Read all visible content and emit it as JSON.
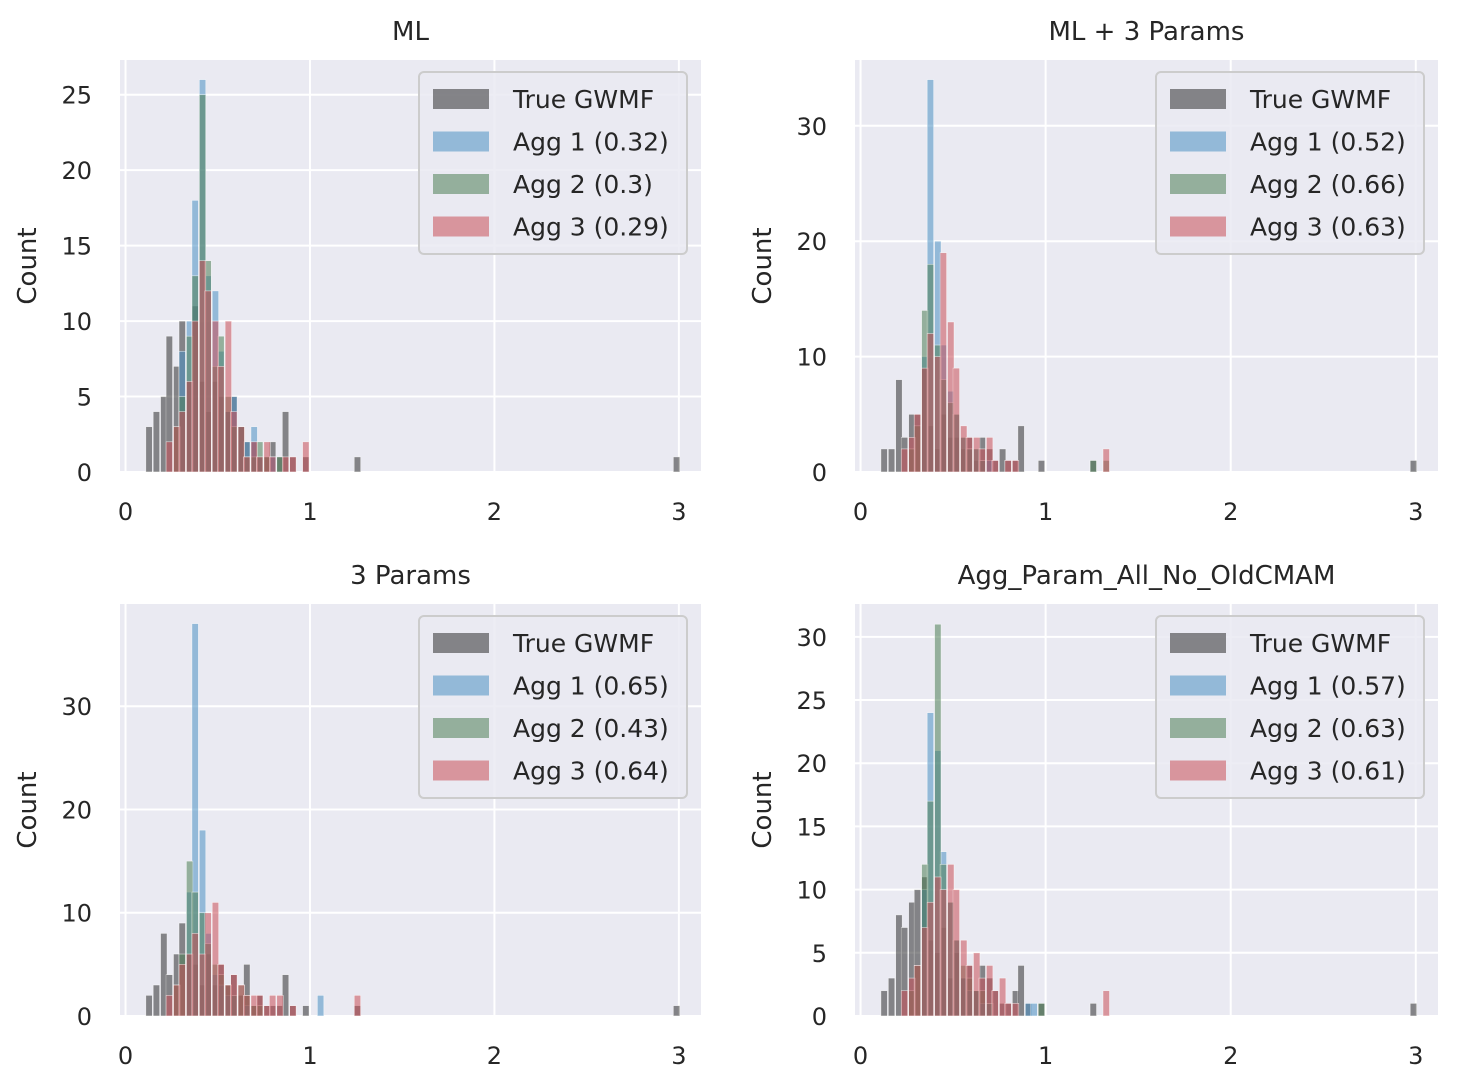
{
  "figure": {
    "background": "#ffffff"
  },
  "style": {
    "axes_bg": "#eaeaf2",
    "grid": "#ffffff",
    "text": "#262626",
    "legend_bg": "#eaeaf2",
    "legend_border": "#cccccc",
    "bar_opacity": 0.55
  },
  "colors": {
    "True GWMF": "#2d2d30",
    "Agg 1": "#4a90c2",
    "Agg 2": "#4d7d56",
    "Agg 3": "#c94f57"
  },
  "chart_data": [
    {
      "type": "bar",
      "title": "ML",
      "xlabel": "",
      "ylabel": "Count",
      "xlim": [
        -0.03,
        3.12
      ],
      "ylim": [
        0,
        27.3
      ],
      "xticks": [
        0,
        1,
        2,
        3
      ],
      "yticks": [
        0,
        5,
        10,
        15,
        20,
        25
      ],
      "legend": "upper right",
      "bin_width": 0.035,
      "series": [
        {
          "name": "True GWMF",
          "color": "#2d2d30",
          "x": [
            0.11,
            0.15,
            0.19,
            0.22,
            0.26,
            0.29,
            0.33,
            0.36,
            0.4,
            0.43,
            0.47,
            0.5,
            0.54,
            0.57,
            0.61,
            0.64,
            0.68,
            0.71,
            0.75,
            0.78,
            0.82,
            0.85,
            0.89,
            0.96,
            1.24,
            2.97
          ],
          "y": [
            3,
            4,
            5,
            9,
            7,
            10,
            6,
            11,
            6,
            4,
            6,
            5,
            4,
            5,
            3,
            2,
            2,
            1,
            1,
            2,
            1,
            4,
            1,
            1,
            1,
            1
          ]
        },
        {
          "name": "Agg 1 (0.32)",
          "color": "#4a90c2",
          "x": [
            0.29,
            0.33,
            0.36,
            0.4,
            0.43,
            0.47,
            0.5,
            0.54,
            0.57,
            0.61,
            0.64,
            0.68,
            0.71,
            0.78
          ],
          "y": [
            8,
            10,
            18,
            26,
            13,
            12,
            8,
            4,
            5,
            3,
            2,
            3,
            1,
            1
          ]
        },
        {
          "name": "Agg 2 (0.3)",
          "color": "#4d7d56",
          "x": [
            0.26,
            0.29,
            0.33,
            0.36,
            0.4,
            0.43,
            0.47,
            0.5,
            0.54,
            0.57,
            0.61,
            0.64,
            0.68,
            0.71,
            0.75,
            0.82
          ],
          "y": [
            3,
            5,
            9,
            13,
            25,
            14,
            7,
            9,
            5,
            3,
            3,
            1,
            1,
            2,
            1,
            1
          ]
        },
        {
          "name": "Agg 3 (0.29)",
          "color": "#c94f57",
          "x": [
            0.22,
            0.26,
            0.29,
            0.33,
            0.36,
            0.4,
            0.43,
            0.47,
            0.5,
            0.54,
            0.57,
            0.61,
            0.64,
            0.68,
            0.71,
            0.75,
            0.78,
            0.85,
            0.89,
            0.96
          ],
          "y": [
            2,
            3,
            4,
            6,
            10,
            14,
            12,
            10,
            7,
            10,
            4,
            3,
            1,
            2,
            1,
            2,
            1,
            1,
            1,
            2
          ]
        }
      ]
    },
    {
      "type": "bar",
      "title": "ML + 3 Params",
      "xlabel": "",
      "ylabel": "Count",
      "xlim": [
        -0.03,
        3.12
      ],
      "ylim": [
        0,
        35.7
      ],
      "xticks": [
        0,
        1,
        2,
        3
      ],
      "yticks": [
        0,
        10,
        20,
        30
      ],
      "legend": "upper right",
      "bin_width": 0.035,
      "series": [
        {
          "name": "True GWMF",
          "color": "#2d2d30",
          "x": [
            0.11,
            0.15,
            0.19,
            0.22,
            0.26,
            0.29,
            0.33,
            0.36,
            0.4,
            0.43,
            0.47,
            0.5,
            0.54,
            0.57,
            0.61,
            0.64,
            0.68,
            0.71,
            0.75,
            0.78,
            0.82,
            0.85,
            0.96,
            1.24,
            2.97
          ],
          "y": [
            2,
            2,
            8,
            3,
            5,
            5,
            9,
            4,
            2,
            5,
            3,
            3,
            2,
            3,
            1,
            3,
            2,
            1,
            2,
            1,
            1,
            4,
            1,
            1,
            1
          ]
        },
        {
          "name": "Agg 1 (0.52)",
          "color": "#4a90c2",
          "x": [
            0.33,
            0.36,
            0.4,
            0.43,
            0.47,
            0.5,
            0.54,
            0.57,
            0.61,
            0.64,
            0.68
          ],
          "y": [
            10,
            34,
            20,
            11,
            7,
            5,
            3,
            2,
            2,
            1,
            1
          ]
        },
        {
          "name": "Agg 2 (0.66)",
          "color": "#4d7d56",
          "x": [
            0.26,
            0.29,
            0.33,
            0.36,
            0.4,
            0.43,
            0.47,
            0.5,
            0.54,
            0.57,
            0.61,
            0.64,
            1.24,
            1.31
          ],
          "y": [
            2,
            4,
            14,
            18,
            11,
            8,
            6,
            5,
            3,
            2,
            2,
            1,
            1,
            1
          ]
        },
        {
          "name": "Agg 3 (0.63)",
          "color": "#c94f57",
          "x": [
            0.22,
            0.26,
            0.29,
            0.33,
            0.36,
            0.4,
            0.43,
            0.47,
            0.5,
            0.54,
            0.57,
            0.61,
            0.64,
            0.68,
            0.71,
            0.78,
            0.82,
            1.31
          ],
          "y": [
            2,
            3,
            5,
            9,
            12,
            10,
            19,
            13,
            9,
            4,
            3,
            3,
            2,
            3,
            1,
            1,
            1,
            2
          ]
        }
      ]
    },
    {
      "type": "bar",
      "title": "3 Params",
      "xlabel": "",
      "ylabel": "Count",
      "xlim": [
        -0.03,
        3.12
      ],
      "ylim": [
        0,
        39.9
      ],
      "xticks": [
        0,
        1,
        2,
        3
      ],
      "yticks": [
        0,
        10,
        20,
        30
      ],
      "legend": "upper right",
      "bin_width": 0.035,
      "series": [
        {
          "name": "True GWMF",
          "color": "#2d2d30",
          "x": [
            0.11,
            0.15,
            0.19,
            0.22,
            0.26,
            0.29,
            0.33,
            0.36,
            0.4,
            0.43,
            0.47,
            0.5,
            0.54,
            0.57,
            0.61,
            0.64,
            0.68,
            0.71,
            0.75,
            0.78,
            0.82,
            0.85,
            0.89,
            0.96,
            1.24,
            2.97
          ],
          "y": [
            2,
            3,
            8,
            4,
            6,
            9,
            6,
            5,
            3,
            6,
            3,
            5,
            3,
            4,
            2,
            5,
            1,
            2,
            1,
            1,
            1,
            4,
            1,
            1,
            1,
            1
          ]
        },
        {
          "name": "Agg 1 (0.65)",
          "color": "#4a90c2",
          "x": [
            0.33,
            0.36,
            0.4,
            0.43,
            0.47,
            0.5,
            0.54,
            0.57,
            0.64,
            1.04
          ],
          "y": [
            12,
            38,
            18,
            8,
            4,
            3,
            2,
            2,
            1,
            2
          ]
        },
        {
          "name": "Agg 2 (0.43)",
          "color": "#4d7d56",
          "x": [
            0.26,
            0.29,
            0.33,
            0.36,
            0.4,
            0.43,
            0.47,
            0.5,
            0.54,
            0.57,
            0.61,
            0.64,
            0.68,
            0.71
          ],
          "y": [
            3,
            6,
            15,
            12,
            10,
            7,
            5,
            4,
            3,
            2,
            3,
            2,
            1,
            1
          ]
        },
        {
          "name": "Agg 3 (0.64)",
          "color": "#c94f57",
          "x": [
            0.22,
            0.26,
            0.29,
            0.33,
            0.36,
            0.4,
            0.43,
            0.47,
            0.5,
            0.54,
            0.57,
            0.61,
            0.64,
            0.68,
            0.71,
            0.75,
            0.78,
            0.82,
            0.89,
            1.24
          ],
          "y": [
            2,
            3,
            5,
            6,
            8,
            6,
            10,
            11,
            5,
            3,
            4,
            3,
            2,
            2,
            2,
            1,
            2,
            2,
            1,
            2
          ]
        }
      ]
    },
    {
      "type": "bar",
      "title": "Agg_Param_All_No_OldCMAM",
      "xlabel": "",
      "ylabel": "Count",
      "xlim": [
        -0.03,
        3.12
      ],
      "ylim": [
        0,
        32.6
      ],
      "xticks": [
        0,
        1,
        2,
        3
      ],
      "yticks": [
        0,
        5,
        10,
        15,
        20,
        25,
        30
      ],
      "legend": "upper right",
      "bin_width": 0.035,
      "series": [
        {
          "name": "True GWMF",
          "color": "#2d2d30",
          "x": [
            0.11,
            0.15,
            0.19,
            0.22,
            0.26,
            0.29,
            0.33,
            0.36,
            0.4,
            0.43,
            0.47,
            0.5,
            0.54,
            0.57,
            0.61,
            0.64,
            0.68,
            0.71,
            0.75,
            0.78,
            0.82,
            0.85,
            0.89,
            0.96,
            1.24,
            2.97
          ],
          "y": [
            2,
            3,
            8,
            7,
            9,
            10,
            11,
            6,
            5,
            7,
            3,
            5,
            3,
            4,
            2,
            4,
            3,
            2,
            1,
            1,
            2,
            4,
            1,
            1,
            1,
            1
          ]
        },
        {
          "name": "Agg 1 (0.57)",
          "color": "#4a90c2",
          "x": [
            0.33,
            0.36,
            0.4,
            0.43,
            0.47,
            0.5,
            0.54,
            0.57,
            0.61,
            0.64,
            0.68,
            0.89,
            0.92
          ],
          "y": [
            10,
            24,
            21,
            13,
            9,
            6,
            3,
            2,
            2,
            1,
            1,
            1,
            1
          ]
        },
        {
          "name": "Agg 2 (0.63)",
          "color": "#4d7d56",
          "x": [
            0.26,
            0.29,
            0.33,
            0.36,
            0.4,
            0.43,
            0.47,
            0.5,
            0.54,
            0.57,
            0.61,
            0.64,
            0.68,
            0.96
          ],
          "y": [
            2,
            4,
            12,
            17,
            31,
            12,
            9,
            6,
            4,
            3,
            2,
            2,
            1,
            1
          ]
        },
        {
          "name": "Agg 3 (0.61)",
          "color": "#c94f57",
          "x": [
            0.22,
            0.26,
            0.29,
            0.33,
            0.36,
            0.4,
            0.43,
            0.47,
            0.5,
            0.54,
            0.57,
            0.61,
            0.64,
            0.68,
            0.71,
            0.75,
            0.78,
            0.82,
            1.31
          ],
          "y": [
            2,
            3,
            4,
            7,
            9,
            11,
            10,
            12,
            10,
            6,
            4,
            5,
            3,
            4,
            2,
            3,
            1,
            1,
            2
          ]
        }
      ]
    }
  ]
}
